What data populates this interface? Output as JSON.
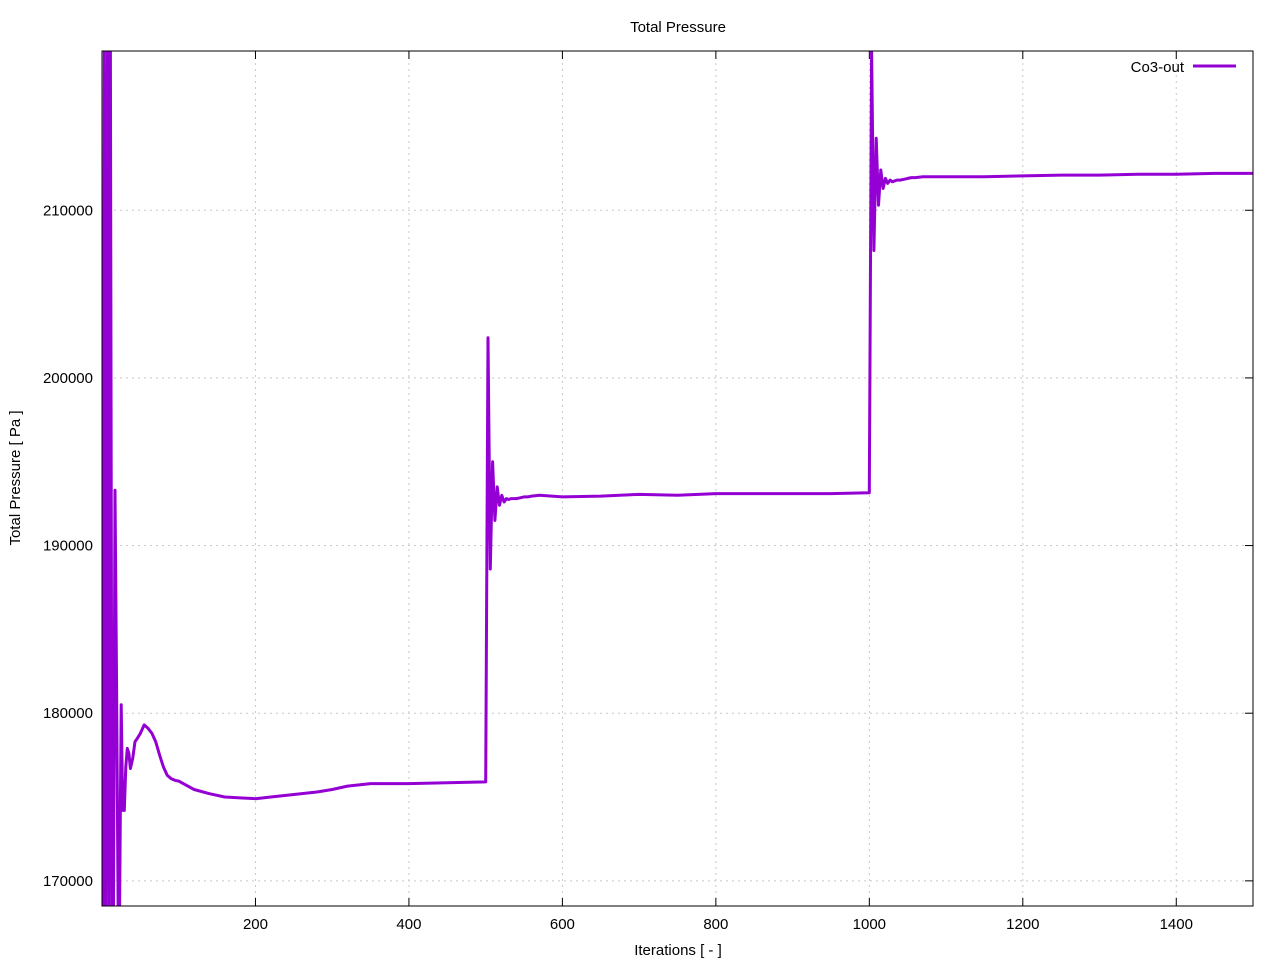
{
  "chart_data": {
    "type": "line",
    "title": "Total Pressure",
    "xlabel": "Iterations [ - ]",
    "ylabel": "Total Pressure [ Pa ]",
    "xlim": [
      0,
      1500
    ],
    "ylim": [
      168500,
      219500
    ],
    "x_ticks": [
      200,
      400,
      600,
      800,
      1000,
      1200,
      1400
    ],
    "y_ticks": [
      170000,
      180000,
      190000,
      200000,
      210000
    ],
    "grid": true,
    "legend_position": "top-right",
    "series": [
      {
        "name": "Co3-out",
        "color": "#9400d3",
        "x": [
          1,
          3,
          5,
          7,
          9,
          11,
          13,
          15,
          17,
          19,
          21,
          23,
          25,
          27,
          29,
          31,
          33,
          35,
          37,
          40,
          43,
          46,
          50,
          55,
          60,
          65,
          70,
          75,
          80,
          85,
          90,
          95,
          100,
          110,
          120,
          140,
          160,
          180,
          200,
          220,
          250,
          280,
          300,
          320,
          350,
          400,
          450,
          500,
          503,
          506,
          509,
          512,
          515,
          518,
          521,
          524,
          527,
          530,
          533,
          536,
          540,
          545,
          550,
          555,
          560,
          570,
          600,
          650,
          700,
          750,
          800,
          850,
          900,
          950,
          1000,
          1003,
          1006,
          1009,
          1012,
          1015,
          1018,
          1021,
          1024,
          1027,
          1030,
          1033,
          1036,
          1040,
          1045,
          1050,
          1055,
          1060,
          1070,
          1100,
          1150,
          1200,
          1250,
          1300,
          1350,
          1400,
          1450,
          1500
        ],
        "values": [
          168500,
          219500,
          168500,
          219500,
          168500,
          219500,
          168500,
          168500,
          193300,
          181500,
          168500,
          168500,
          180500,
          174200,
          174200,
          176800,
          177900,
          177600,
          176700,
          177300,
          178300,
          178500,
          178800,
          179300,
          179100,
          178800,
          178300,
          177500,
          176800,
          176300,
          176100,
          176000,
          175950,
          175700,
          175450,
          175200,
          175000,
          174950,
          174900,
          175000,
          175150,
          175300,
          175450,
          175650,
          175800,
          175800,
          175850,
          175900,
          202400,
          188600,
          195000,
          191500,
          193500,
          192400,
          193000,
          192600,
          192800,
          192750,
          192800,
          192800,
          192800,
          192850,
          192900,
          192900,
          192950,
          193000,
          192900,
          192950,
          193050,
          193000,
          193100,
          193100,
          193100,
          193100,
          193150,
          219500,
          207600,
          214300,
          210300,
          212400,
          211300,
          211900,
          211600,
          211800,
          211700,
          211750,
          211800,
          211800,
          211850,
          211900,
          211950,
          211950,
          212000,
          212000,
          212000,
          212050,
          212100,
          212100,
          212150,
          212150,
          212200,
          212200
        ]
      }
    ]
  }
}
